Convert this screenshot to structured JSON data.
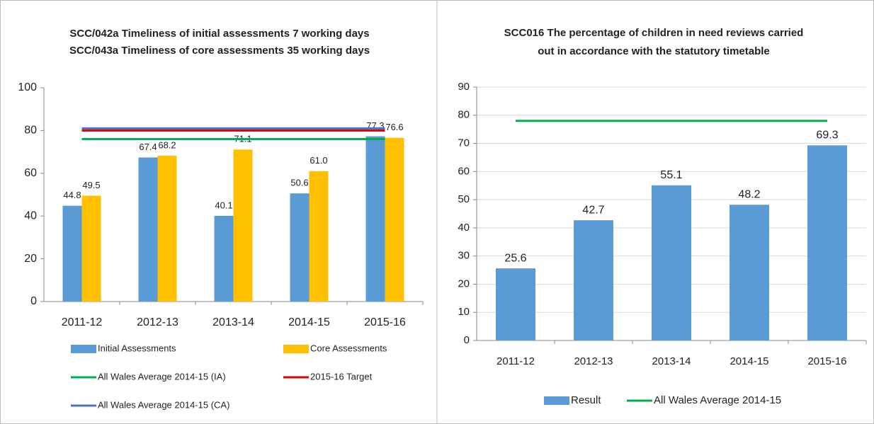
{
  "chart_data": [
    {
      "type": "bar",
      "title": [
        "SCC/042a Timeliness of initial assessments 7 working days",
        "SCC/043a Timeliness of core assessments 35 working days"
      ],
      "categories": [
        "2011-12",
        "2012-13",
        "2013-14",
        "2014-15",
        "2015-16"
      ],
      "series": [
        {
          "name": "Initial Assessments",
          "color": "#5b9bd5",
          "values": [
            44.8,
            67.4,
            40.1,
            50.6,
            77.3
          ]
        },
        {
          "name": "Core Assessments",
          "color": "#ffc000",
          "values": [
            49.5,
            68.2,
            71.1,
            61.0,
            76.6
          ],
          "value_labels": [
            "49.5",
            "68.2",
            "71.1",
            "61.0",
            "76.6"
          ]
        }
      ],
      "reference_lines": [
        {
          "name": "All Wales Average 2014-15 (IA)",
          "color": "#00b050",
          "value": 76
        },
        {
          "name": "2015-16 Target",
          "color": "#e00000",
          "value": 80
        },
        {
          "name": "All Wales Average 2014-15 (CA)",
          "color": "#4472c4",
          "value": 81
        }
      ],
      "ylim": [
        0,
        100
      ],
      "yticks": [
        0,
        20,
        40,
        60,
        80,
        100
      ],
      "grid": false
    },
    {
      "type": "bar",
      "title": [
        "SCC016 The percentage of children in need reviews carried",
        "out in accordance with the statutory timetable"
      ],
      "categories": [
        "2011-12",
        "2012-13",
        "2013-14",
        "2014-15",
        "2015-16"
      ],
      "series": [
        {
          "name": "Result",
          "color": "#5b9bd5",
          "values": [
            25.6,
            42.7,
            55.1,
            48.2,
            69.3
          ]
        }
      ],
      "reference_lines": [
        {
          "name": "All Wales Average 2014-15",
          "color": "#00b050",
          "value": 78
        }
      ],
      "ylim": [
        0,
        90
      ],
      "yticks": [
        0,
        10,
        20,
        30,
        40,
        50,
        60,
        70,
        80,
        90
      ],
      "grid": true
    }
  ]
}
